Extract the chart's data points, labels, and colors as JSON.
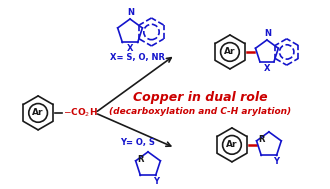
{
  "title_line1": "Copper in dual role",
  "title_line2": "(decarboxylation and C-H arylation)",
  "blue_color": "#1414CC",
  "black_color": "#1a1a1a",
  "red_color": "#CC0000",
  "bg_color": "#FFFFFF",
  "label_x": "X= S, O, NR",
  "label_y": "Y= O, S",
  "ar_label": "Ar",
  "figsize": [
    3.3,
    1.89
  ],
  "dpi": 100
}
